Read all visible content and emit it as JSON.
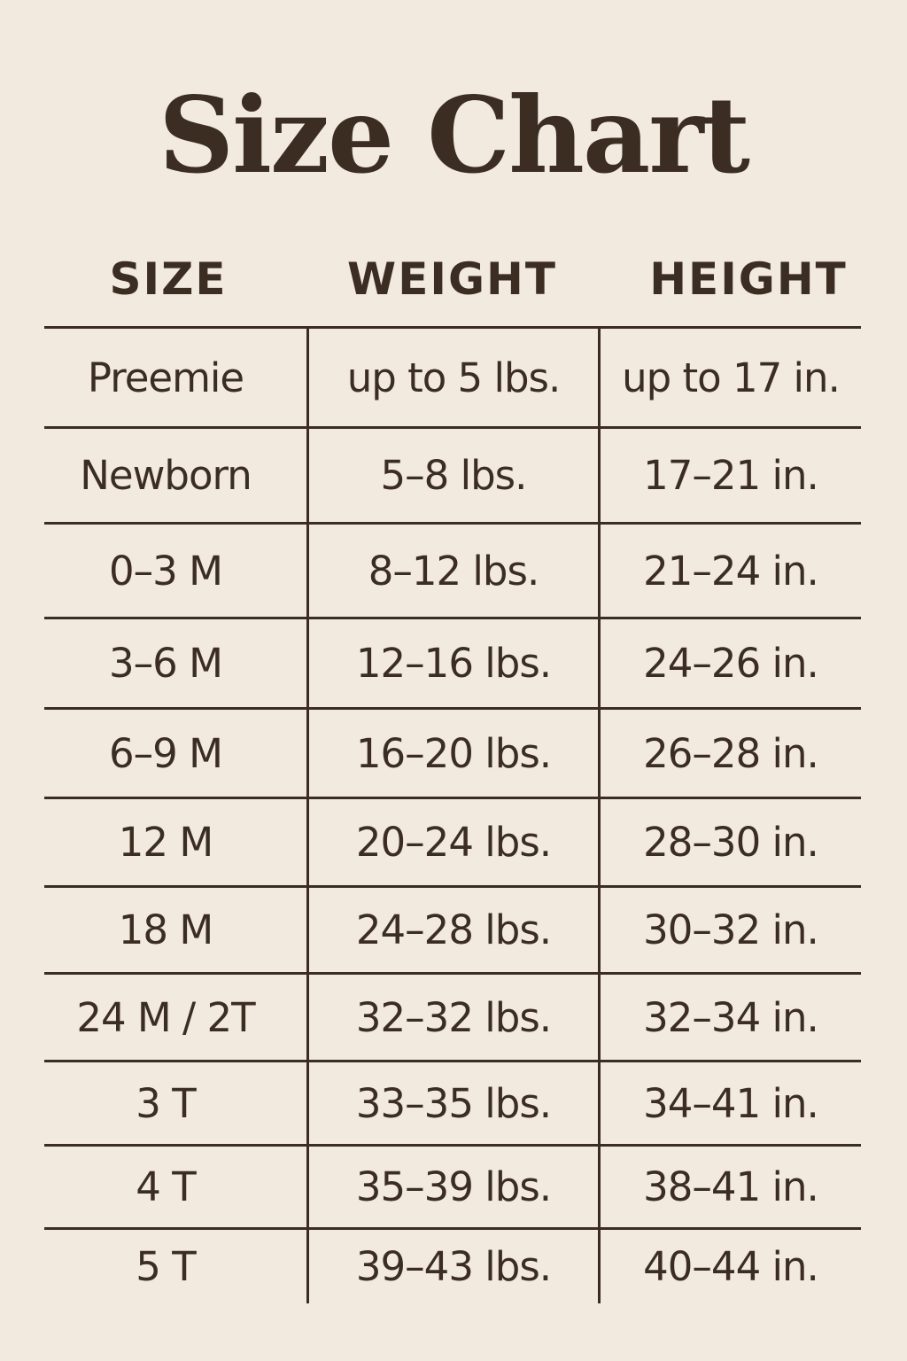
{
  "title": "Size Chart",
  "columns": [
    "SIZE",
    "WEIGHT",
    "HEIGHT"
  ],
  "rows": [
    [
      "Preemie",
      "up to 5 lbs.",
      "up to 17 in."
    ],
    [
      "Newborn",
      "5–8 lbs.",
      "17–21 in."
    ],
    [
      "0–3 M",
      "8–12 lbs.",
      "21–24 in."
    ],
    [
      "3–6 M",
      "12–16 lbs.",
      "24–26 in."
    ],
    [
      "6–9 M",
      "16–20 lbs.",
      "26–28 in."
    ],
    [
      "12 M",
      "20–24 lbs.",
      "28–30 in."
    ],
    [
      "18 M",
      "24–28 lbs.",
      "30–32 in."
    ],
    [
      "24 M / 2T",
      "32–32 lbs.",
      "32–34 in."
    ],
    [
      "3 T",
      "33–35 lbs.",
      "34–41 in."
    ],
    [
      "4 T",
      "35–39 lbs.",
      "38–41 in."
    ],
    [
      "5 T",
      "39–43 lbs.",
      "40–44 in."
    ]
  ],
  "colors": {
    "background": "#f2eadf",
    "text": "#3b2d21"
  }
}
